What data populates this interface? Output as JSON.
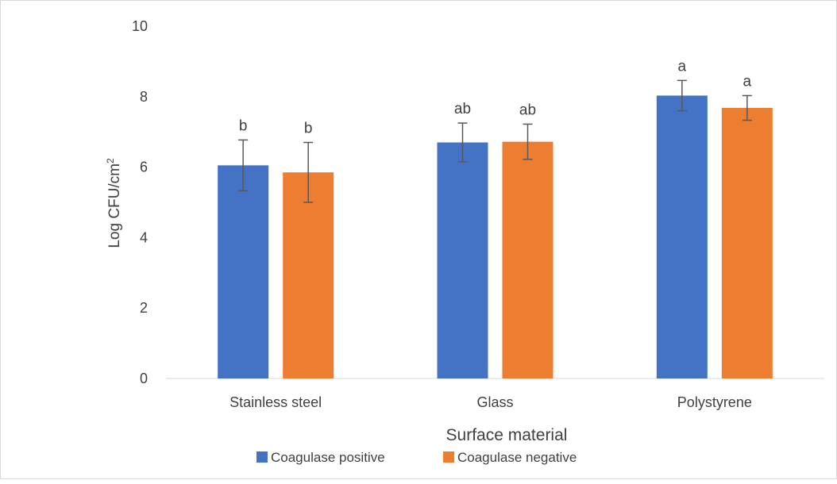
{
  "chart_data": {
    "type": "bar",
    "title": "",
    "xlabel": "Surface material",
    "ylabel": "Log CFU/cm",
    "ylabel_superscript": "2",
    "ylim": [
      0,
      10
    ],
    "yticks": [
      0,
      2,
      4,
      6,
      8,
      10
    ],
    "grid": false,
    "legend_position": "bottom",
    "categories": [
      "Stainless steel",
      "Glass",
      "Polystyrene"
    ],
    "series": [
      {
        "name": "Coagulase positive",
        "color": "#4472C4",
        "values": [
          6.05,
          6.7,
          8.03
        ],
        "errors": [
          0.72,
          0.55,
          0.43
        ],
        "letters": [
          "b",
          "ab",
          "a"
        ]
      },
      {
        "name": "Coagulase negative",
        "color": "#ED7D31",
        "values": [
          5.85,
          6.72,
          7.68
        ],
        "errors": [
          0.85,
          0.5,
          0.35
        ],
        "letters": [
          "b",
          "ab",
          "a"
        ]
      }
    ]
  }
}
